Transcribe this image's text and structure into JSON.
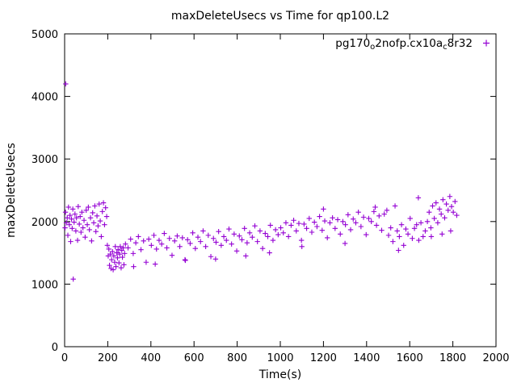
{
  "title": "maxDeleteUsecs vs Time for qp100.L2",
  "legend": {
    "marker": "+",
    "color": "#9400d3",
    "parts": [
      {
        "text": "pg170",
        "sub": false
      },
      {
        "text": "o",
        "sub": true
      },
      {
        "text": "2nofp.cx10a",
        "sub": false
      },
      {
        "text": "c",
        "sub": true
      },
      {
        "text": "8r32",
        "sub": false
      }
    ]
  },
  "chart_data": {
    "type": "scatter",
    "title": "maxDeleteUsecs vs Time for qp100.L2",
    "xlabel": "Time(s)",
    "ylabel": "maxDeleteUsecs",
    "xlim": [
      0,
      2000
    ],
    "ylim": [
      0,
      5000
    ],
    "xticks": [
      0,
      200,
      400,
      600,
      800,
      1000,
      1200,
      1400,
      1600,
      1800,
      2000
    ],
    "yticks": [
      0,
      1000,
      2000,
      3000,
      4000,
      5000
    ],
    "grid": false,
    "legend_position": "top-right",
    "series": [
      {
        "name": "pg170_o2nofp.cx10a_c8r32",
        "marker": "+",
        "color": "#9400d3",
        "points": [
          [
            2,
            1900
          ],
          [
            4,
            2150
          ],
          [
            5,
            4200
          ],
          [
            8,
            1980
          ],
          [
            12,
            2060
          ],
          [
            15,
            1780
          ],
          [
            18,
            2230
          ],
          [
            22,
            1950
          ],
          [
            25,
            2100
          ],
          [
            28,
            1680
          ],
          [
            32,
            2040
          ],
          [
            35,
            1890
          ],
          [
            38,
            2200
          ],
          [
            40,
            1080
          ],
          [
            44,
            1990
          ],
          [
            48,
            2120
          ],
          [
            52,
            1850
          ],
          [
            55,
            2060
          ],
          [
            60,
            1700
          ],
          [
            63,
            2240
          ],
          [
            68,
            1960
          ],
          [
            72,
            2080
          ],
          [
            76,
            1830
          ],
          [
            80,
            2150
          ],
          [
            85,
            1900
          ],
          [
            90,
            2020
          ],
          [
            95,
            1750
          ],
          [
            100,
            2180
          ],
          [
            105,
            1950
          ],
          [
            110,
            2230
          ],
          [
            115,
            1870
          ],
          [
            120,
            2060
          ],
          [
            125,
            1690
          ],
          [
            130,
            2140
          ],
          [
            135,
            1980
          ],
          [
            140,
            2250
          ],
          [
            145,
            1840
          ],
          [
            150,
            2090
          ],
          [
            155,
            1930
          ],
          [
            160,
            2280
          ],
          [
            165,
            2010
          ],
          [
            170,
            1760
          ],
          [
            175,
            2160
          ],
          [
            180,
            2300
          ],
          [
            185,
            1950
          ],
          [
            190,
            2220
          ],
          [
            195,
            2080
          ],
          [
            198,
            1620
          ],
          [
            202,
            1450
          ],
          [
            205,
            1560
          ],
          [
            208,
            1300
          ],
          [
            212,
            1480
          ],
          [
            215,
            1250
          ],
          [
            218,
            1390
          ],
          [
            222,
            1520
          ],
          [
            225,
            1230
          ],
          [
            228,
            1450
          ],
          [
            232,
            1350
          ],
          [
            235,
            1600
          ],
          [
            238,
            1280
          ],
          [
            242,
            1500
          ],
          [
            245,
            1420
          ],
          [
            248,
            1550
          ],
          [
            252,
            1340
          ],
          [
            255,
            1480
          ],
          [
            258,
            1600
          ],
          [
            262,
            1260
          ],
          [
            265,
            1540
          ],
          [
            268,
            1430
          ],
          [
            272,
            1580
          ],
          [
            275,
            1310
          ],
          [
            278,
            1490
          ],
          [
            282,
            1640
          ],
          [
            294,
            1580
          ],
          [
            306,
            1720
          ],
          [
            318,
            1490
          ],
          [
            330,
            1660
          ],
          [
            342,
            1760
          ],
          [
            354,
            1550
          ],
          [
            366,
            1690
          ],
          [
            378,
            1350
          ],
          [
            390,
            1720
          ],
          [
            402,
            1620
          ],
          [
            414,
            1780
          ],
          [
            426,
            1560
          ],
          [
            438,
            1700
          ],
          [
            450,
            1640
          ],
          [
            462,
            1810
          ],
          [
            474,
            1580
          ],
          [
            486,
            1730
          ],
          [
            498,
            1460
          ],
          [
            510,
            1690
          ],
          [
            522,
            1770
          ],
          [
            534,
            1600
          ],
          [
            546,
            1740
          ],
          [
            558,
            1390
          ],
          [
            570,
            1710
          ],
          [
            582,
            1650
          ],
          [
            594,
            1820
          ],
          [
            606,
            1570
          ],
          [
            618,
            1750
          ],
          [
            630,
            1680
          ],
          [
            642,
            1850
          ],
          [
            654,
            1600
          ],
          [
            666,
            1780
          ],
          [
            678,
            1440
          ],
          [
            690,
            1730
          ],
          [
            702,
            1670
          ],
          [
            714,
            1840
          ],
          [
            726,
            1620
          ],
          [
            738,
            1760
          ],
          [
            750,
            1700
          ],
          [
            762,
            1880
          ],
          [
            774,
            1640
          ],
          [
            786,
            1800
          ],
          [
            798,
            1530
          ],
          [
            810,
            1770
          ],
          [
            822,
            1710
          ],
          [
            834,
            1890
          ],
          [
            846,
            1660
          ],
          [
            858,
            1820
          ],
          [
            870,
            1750
          ],
          [
            882,
            1930
          ],
          [
            894,
            1680
          ],
          [
            906,
            1850
          ],
          [
            918,
            1570
          ],
          [
            930,
            1810
          ],
          [
            942,
            1760
          ],
          [
            954,
            1940
          ],
          [
            966,
            1700
          ],
          [
            978,
            1870
          ],
          [
            990,
            1790
          ],
          [
            320,
            1280
          ],
          [
            420,
            1320
          ],
          [
            560,
            1380
          ],
          [
            700,
            1400
          ],
          [
            840,
            1450
          ],
          [
            950,
            1500
          ],
          [
            1002,
            1900
          ],
          [
            1014,
            1820
          ],
          [
            1026,
            1980
          ],
          [
            1038,
            1760
          ],
          [
            1050,
            1940
          ],
          [
            1062,
            2020
          ],
          [
            1074,
            1850
          ],
          [
            1086,
            1970
          ],
          [
            1098,
            1700
          ],
          [
            1110,
            1960
          ],
          [
            1122,
            1890
          ],
          [
            1134,
            2050
          ],
          [
            1146,
            1830
          ],
          [
            1158,
            1990
          ],
          [
            1170,
            1920
          ],
          [
            1182,
            2080
          ],
          [
            1194,
            1860
          ],
          [
            1206,
            2010
          ],
          [
            1218,
            1740
          ],
          [
            1230,
            1980
          ],
          [
            1242,
            2060
          ],
          [
            1254,
            1890
          ],
          [
            1266,
            2030
          ],
          [
            1278,
            1800
          ],
          [
            1290,
            2000
          ],
          [
            1302,
            1950
          ],
          [
            1314,
            2110
          ],
          [
            1326,
            1870
          ],
          [
            1338,
            2040
          ],
          [
            1350,
            1980
          ],
          [
            1362,
            2150
          ],
          [
            1374,
            1920
          ],
          [
            1386,
            2070
          ],
          [
            1398,
            1790
          ],
          [
            1410,
            2050
          ],
          [
            1422,
            2000
          ],
          [
            1434,
            2160
          ],
          [
            1446,
            1940
          ],
          [
            1458,
            2090
          ],
          [
            1470,
            1860
          ],
          [
            1482,
            2120
          ],
          [
            1494,
            2180
          ],
          [
            1200,
            2200
          ],
          [
            1440,
            2230
          ],
          [
            1100,
            1600
          ],
          [
            1300,
            1650
          ],
          [
            1502,
            1780
          ],
          [
            1512,
            1900
          ],
          [
            1522,
            1680
          ],
          [
            1532,
            2250
          ],
          [
            1542,
            1850
          ],
          [
            1552,
            1760
          ],
          [
            1562,
            1950
          ],
          [
            1572,
            1620
          ],
          [
            1582,
            1880
          ],
          [
            1592,
            1800
          ],
          [
            1602,
            2050
          ],
          [
            1612,
            1730
          ],
          [
            1622,
            1890
          ],
          [
            1632,
            1950
          ],
          [
            1642,
            1700
          ],
          [
            1652,
            1980
          ],
          [
            1662,
            1760
          ],
          [
            1672,
            1850
          ],
          [
            1548,
            1540
          ],
          [
            1640,
            2380
          ],
          [
            1682,
            2000
          ],
          [
            1690,
            2150
          ],
          [
            1698,
            1900
          ],
          [
            1706,
            2250
          ],
          [
            1714,
            2050
          ],
          [
            1722,
            2300
          ],
          [
            1730,
            1980
          ],
          [
            1738,
            2200
          ],
          [
            1746,
            2120
          ],
          [
            1754,
            2350
          ],
          [
            1762,
            2060
          ],
          [
            1770,
            2280
          ],
          [
            1778,
            2180
          ],
          [
            1786,
            2400
          ],
          [
            1794,
            2240
          ],
          [
            1802,
            2150
          ],
          [
            1810,
            2320
          ],
          [
            1818,
            2100
          ],
          [
            1790,
            1850
          ],
          [
            1700,
            1760
          ],
          [
            1750,
            1800
          ]
        ]
      }
    ]
  }
}
